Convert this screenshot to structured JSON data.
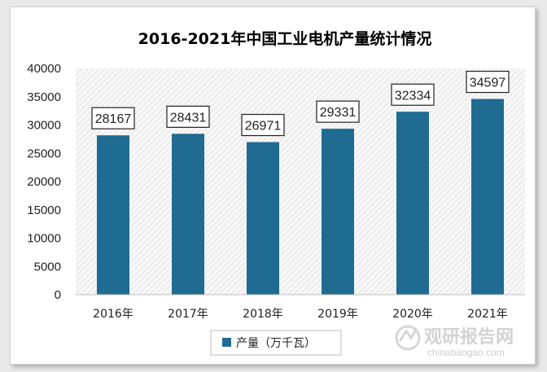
{
  "chart_data": {
    "type": "bar",
    "title": "2016-2021年中国工业电机产量统计情况",
    "categories": [
      "2016年",
      "2017年",
      "2018年",
      "2019年",
      "2020年",
      "2021年"
    ],
    "series": [
      {
        "name": "产量（万千瓦）",
        "values": [
          28167,
          28431,
          26971,
          29331,
          32334,
          34597
        ]
      }
    ],
    "ylim": [
      0,
      40000
    ],
    "yticks": [
      0,
      5000,
      10000,
      15000,
      20000,
      25000,
      30000,
      35000,
      40000
    ],
    "data_labels": [
      "28167",
      "28431",
      "26971",
      "29331",
      "32334",
      "34597"
    ],
    "legend_position": "bottom",
    "grid": false,
    "colors": {
      "bar": "#1f6b91",
      "title": "#1f5d82",
      "plot_pattern": "#e6e6e6"
    }
  },
  "watermark": {
    "text_cn": "观研报告网",
    "text_en": "chinabaogao.com"
  }
}
